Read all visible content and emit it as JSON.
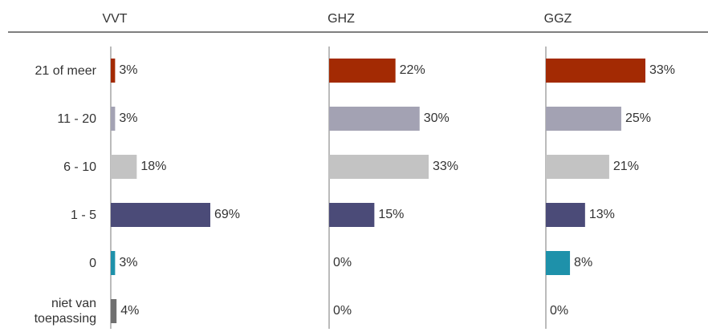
{
  "chart_data": {
    "type": "bar",
    "orientation": "horizontal",
    "categories": [
      "21 of meer",
      "11 - 20",
      "6 - 10",
      "1 - 5",
      "0",
      "niet van toepassing"
    ],
    "colors": [
      "#a32a03",
      "#a3a2b3",
      "#c3c3c3",
      "#4b4b78",
      "#1e91aa",
      "#707070"
    ],
    "series": [
      {
        "name": "VVT",
        "values": [
          3,
          3,
          18,
          69,
          3,
          4
        ],
        "value_labels": [
          "3%",
          "3%",
          "18%",
          "69%",
          "3%",
          "4%"
        ]
      },
      {
        "name": "GHZ",
        "values": [
          22,
          30,
          33,
          15,
          0,
          0
        ],
        "value_labels": [
          "22%",
          "30%",
          "33%",
          "15%",
          "0%",
          "0%"
        ]
      },
      {
        "name": "GGZ",
        "values": [
          33,
          25,
          21,
          13,
          8,
          0
        ],
        "value_labels": [
          "33%",
          "25%",
          "21%",
          "13%",
          "8%",
          "0%"
        ]
      }
    ]
  }
}
